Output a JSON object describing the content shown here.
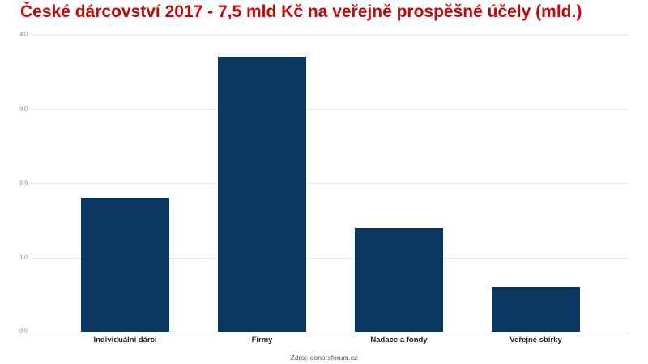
{
  "title": "České dárcovství 2017 - 7,5 mld Kč na veřejně prospěšné účely (mld.)",
  "source": "Zdroj: donorsforum.cz",
  "colors": {
    "title": "#c00a0a",
    "bar": "#0b3761",
    "gridline": "#e6e6e6",
    "axis": "#9e9e9e"
  },
  "y_ticks": [
    "0.0",
    "1.0",
    "2.0",
    "3.0",
    "4.0"
  ],
  "chart_data": {
    "type": "bar",
    "title": "České dárcovství 2017 - 7,5 mld Kč na veřejně prospěšné účely (mld.)",
    "categories": [
      "Individuální dárci",
      "Firmy",
      "Nadace a fondy",
      "Veřejné sbírky"
    ],
    "values": [
      1.8,
      3.7,
      1.4,
      0.6
    ],
    "xlabel": "",
    "ylabel": "",
    "ylim": [
      0,
      4.0
    ],
    "yticks": [
      0.0,
      1.0,
      2.0,
      3.0,
      4.0
    ],
    "grid": true,
    "legend": "none",
    "annotation": "Zdroj: donorsforum.cz"
  }
}
